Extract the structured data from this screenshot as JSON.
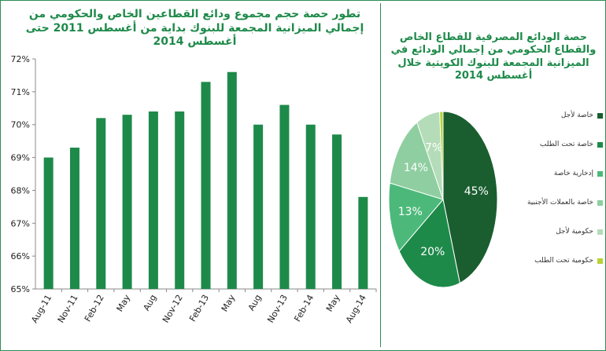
{
  "chart_data": [
    {
      "type": "bar",
      "title": "تطور حصة حجم مجموع ودائع القطاعين الخاص والحكومي من إجمالي الميزانية المجمعة للبنوك بداية من أغسطس 2011 حتى أغسطس 2014",
      "categories": [
        "Aug-11",
        "Nov-11",
        "Feb-12",
        "May",
        "Aug",
        "Nov-12",
        "Feb-13",
        "May",
        "Aug",
        "Nov-13",
        "Feb-14",
        "May",
        "Aug-14"
      ],
      "values": [
        69.0,
        69.3,
        70.2,
        70.3,
        70.4,
        70.4,
        71.3,
        71.6,
        70.0,
        70.6,
        70.0,
        69.7,
        67.8
      ],
      "ylim": [
        65,
        72
      ],
      "yticks": [
        65,
        66,
        67,
        68,
        69,
        70,
        71,
        72
      ],
      "ytick_suffix": "%",
      "grid": false,
      "bar_color": "#1e8a4a"
    },
    {
      "type": "pie",
      "title": "حصة الودائع المصرفية للقطاع الخاص والقطاع الحكومي من إجمالي الودائع في الميزانية المجمعة للبنوك الكويتية خلال أغسطس 2014",
      "slices": [
        {
          "label": "خاصة لأجل",
          "value": 45,
          "color": "#1a5e30",
          "text": "45%"
        },
        {
          "label": "خاصة تحت الطلب",
          "value": 20,
          "color": "#1e8a4a",
          "text": "20%"
        },
        {
          "label": "إدخارية خاصة",
          "value": 13,
          "color": "#4cb97a",
          "text": "13%"
        },
        {
          "label": "خاصة بالعملات الأجنبية",
          "value": 14,
          "color": "#8fcea0",
          "text": "14%"
        },
        {
          "label": "حكومية لأجل",
          "value": 7,
          "color": "#b4dcb8",
          "text": "7%"
        },
        {
          "label": "حكومية تحت الطلب",
          "value": 1,
          "color": "#b7d335",
          "text": ""
        }
      ],
      "legend_position": "right"
    }
  ]
}
